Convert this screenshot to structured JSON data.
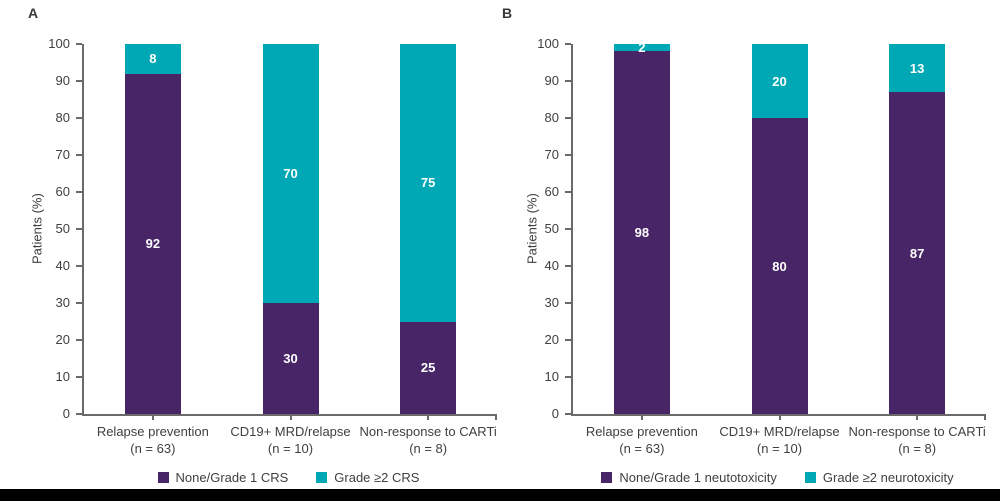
{
  "figure": {
    "background_color": "#ffffff",
    "bottom_bar_color": "#000000"
  },
  "chart_data": [
    {
      "type": "bar",
      "stacked": true,
      "panel_label": "A",
      "title": "",
      "xlabel": "",
      "ylabel": "Patients (%)",
      "ylim": [
        0,
        100
      ],
      "ytick_step": 10,
      "grid": false,
      "legend_position": "bottom",
      "categories": [
        {
          "line1": "Relapse prevention",
          "line2": "(n = 63)"
        },
        {
          "line1": "CD19+ MRD/relapse",
          "line2": "(n = 10)"
        },
        {
          "line1": "Non-response to CARTi",
          "line2": "(n = 8)"
        }
      ],
      "series": [
        {
          "name": "None/Grade 1 CRS",
          "color": "#482566",
          "values": [
            92,
            30,
            25
          ]
        },
        {
          "name": "Grade ≥2 CRS",
          "color": "#00a7b5",
          "values": [
            8,
            70,
            75
          ]
        }
      ]
    },
    {
      "type": "bar",
      "stacked": true,
      "panel_label": "B",
      "title": "",
      "xlabel": "",
      "ylabel": "Patients (%)",
      "ylim": [
        0,
        100
      ],
      "ytick_step": 10,
      "grid": false,
      "legend_position": "bottom",
      "categories": [
        {
          "line1": "Relapse prevention",
          "line2": "(n = 63)"
        },
        {
          "line1": "CD19+ MRD/relapse",
          "line2": "(n = 10)"
        },
        {
          "line1": "Non-response to CARTi",
          "line2": "(n = 8)"
        }
      ],
      "series": [
        {
          "name": "None/Grade 1 neutotoxicity",
          "color": "#482566",
          "values": [
            98,
            80,
            87
          ]
        },
        {
          "name": "Grade ≥2 neurotoxicity",
          "color": "#00a7b5",
          "values": [
            2,
            20,
            13
          ]
        }
      ]
    }
  ]
}
